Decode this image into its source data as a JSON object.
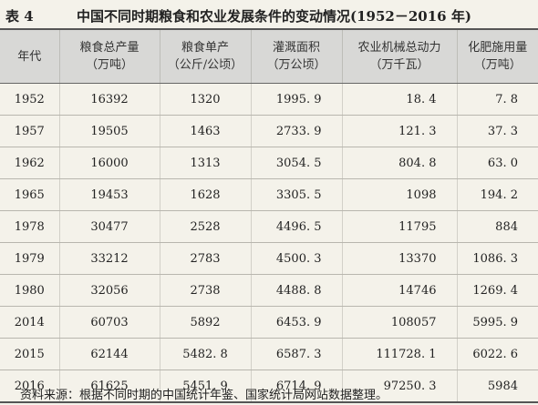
{
  "header": {
    "label": "表 4",
    "title": "中国不同时期粮食和农业发展条件的变动情况(1952－2016 年)"
  },
  "table": {
    "columns": [
      [
        "年代"
      ],
      [
        "粮食总产量",
        "（万吨）"
      ],
      [
        "粮食单产",
        "（公斤/公顷）"
      ],
      [
        "灌溉面积",
        "（万公顷）"
      ],
      [
        "农业机械总动力",
        "（万千瓦）"
      ],
      [
        "化肥施用量",
        "（万吨）"
      ]
    ],
    "rows": [
      [
        "1952",
        "16392",
        "1320",
        "1995. 9",
        "18. 4",
        "7. 8"
      ],
      [
        "1957",
        "19505",
        "1463",
        "2733. 9",
        "121. 3",
        "37. 3"
      ],
      [
        "1962",
        "16000",
        "1313",
        "3054. 5",
        "804. 8",
        "63. 0"
      ],
      [
        "1965",
        "19453",
        "1628",
        "3305. 5",
        "1098",
        "194. 2"
      ],
      [
        "1978",
        "30477",
        "2528",
        "4496. 5",
        "11795",
        "884"
      ],
      [
        "1979",
        "33212",
        "2783",
        "4500. 3",
        "13370",
        "1086. 3"
      ],
      [
        "1980",
        "32056",
        "2738",
        "4488. 8",
        "14746",
        "1269. 4"
      ],
      [
        "2014",
        "60703",
        "5892",
        "6453. 9",
        "108057",
        "5995. 9"
      ],
      [
        "2015",
        "62144",
        "5482. 8",
        "6587. 3",
        "111728. 1",
        "6022. 6"
      ],
      [
        "2016",
        "61625",
        "5451. 9",
        "6714. 9",
        "97250. 3",
        "5984"
      ]
    ]
  },
  "footer": {
    "source": "资料来源：根据不同时期的中国统计年鉴、国家统计局网站数据整理。"
  }
}
